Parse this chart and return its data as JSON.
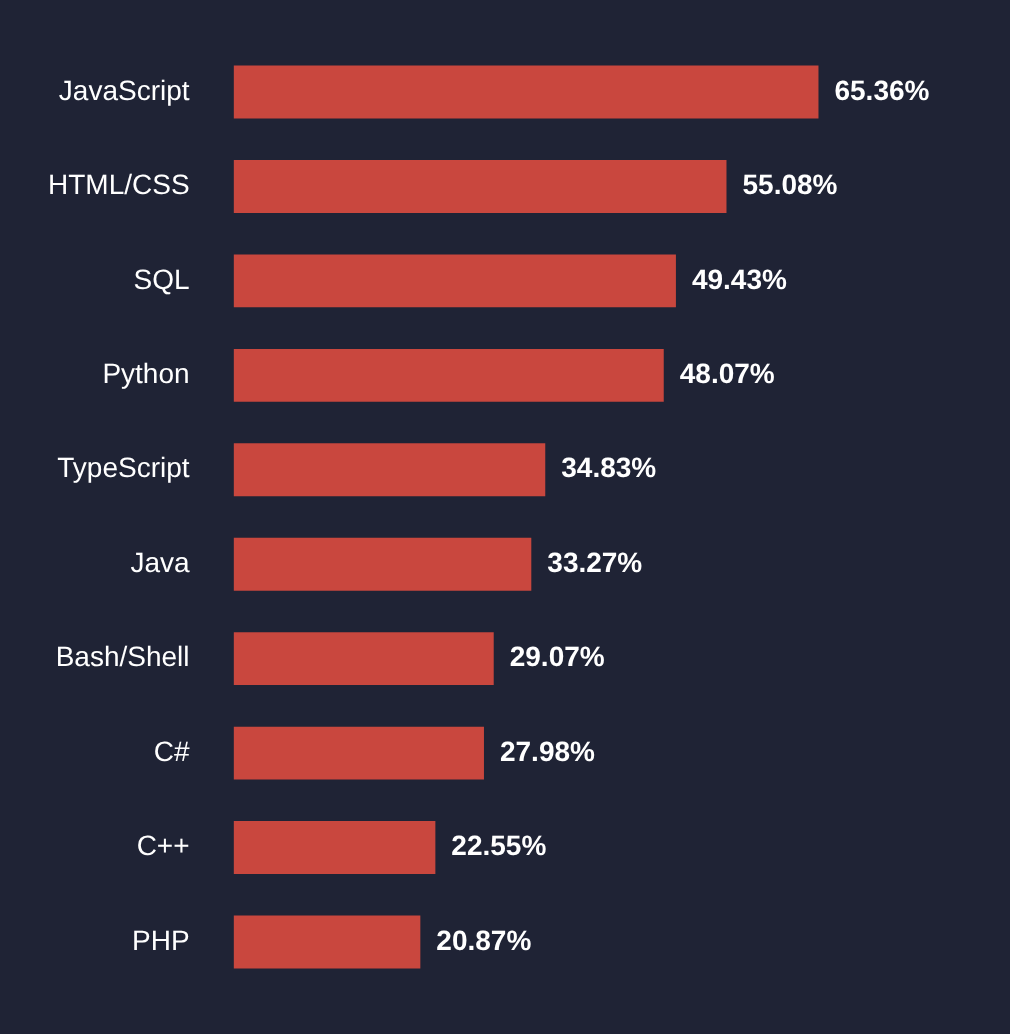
{
  "chart_data": {
    "type": "bar",
    "orientation": "horizontal",
    "categories": [
      "JavaScript",
      "HTML/CSS",
      "SQL",
      "Python",
      "TypeScript",
      "Java",
      "Bash/Shell",
      "C#",
      "C++",
      "PHP"
    ],
    "values": [
      65.36,
      55.08,
      49.43,
      48.07,
      34.83,
      33.27,
      29.07,
      27.98,
      22.55,
      20.87
    ],
    "value_labels": [
      "65.36%",
      "55.08%",
      "49.43%",
      "48.07%",
      "34.83%",
      "33.27%",
      "29.07%",
      "27.98%",
      "22.55%",
      "20.87%"
    ],
    "color": "#c9473e",
    "tick_labels": "y"
  }
}
